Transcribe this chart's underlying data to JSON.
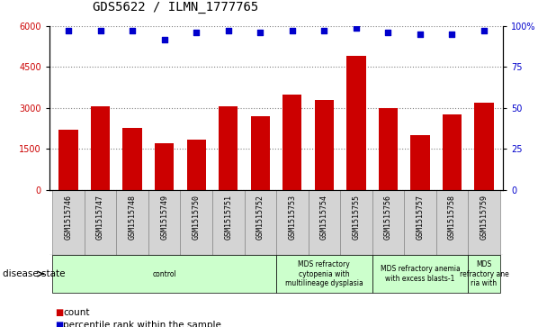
{
  "title": "GDS5622 / ILMN_1777765",
  "samples": [
    "GSM1515746",
    "GSM1515747",
    "GSM1515748",
    "GSM1515749",
    "GSM1515750",
    "GSM1515751",
    "GSM1515752",
    "GSM1515753",
    "GSM1515754",
    "GSM1515755",
    "GSM1515756",
    "GSM1515757",
    "GSM1515758",
    "GSM1515759"
  ],
  "counts": [
    2200,
    3050,
    2250,
    1700,
    1850,
    3050,
    2700,
    3500,
    3300,
    4900,
    3000,
    2000,
    2750,
    3200
  ],
  "percentile_ranks": [
    97,
    97,
    97,
    92,
    96,
    97,
    96,
    97,
    97,
    99,
    96,
    95,
    95,
    97
  ],
  "ylim_left": [
    0,
    6000
  ],
  "ylim_right": [
    0,
    100
  ],
  "yticks_left": [
    0,
    1500,
    3000,
    4500,
    6000
  ],
  "yticks_right": [
    0,
    25,
    50,
    75,
    100
  ],
  "bar_color": "#cc0000",
  "dot_color": "#0000cc",
  "disease_groups": [
    {
      "label": "control",
      "start": 0,
      "end": 7,
      "color": "#ccffcc"
    },
    {
      "label": "MDS refractory\ncytopenia with\nmultilineage dysplasia",
      "start": 7,
      "end": 10,
      "color": "#ccffcc"
    },
    {
      "label": "MDS refractory anemia\nwith excess blasts-1",
      "start": 10,
      "end": 13,
      "color": "#ccffcc"
    },
    {
      "label": "MDS\nrefractory ane\nria with",
      "start": 13,
      "end": 14,
      "color": "#ccffcc"
    }
  ],
  "legend_count_label": "count",
  "legend_percentile_label": "percentile rank within the sample",
  "tick_fontsize": 7,
  "bar_width": 0.6,
  "sample_cell_color": "#d4d4d4",
  "sample_cell_edge": "#888888"
}
